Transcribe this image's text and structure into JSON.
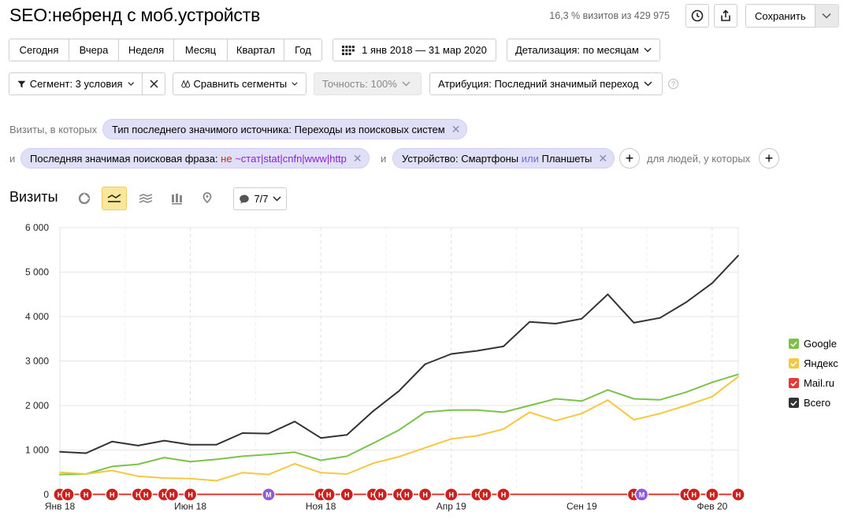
{
  "header": {
    "title": "SEO:небренд с моб.устройств",
    "visits_share": "16,3 % визитов из 429 975",
    "save_label": "Сохранить"
  },
  "toolbar": {
    "periods": [
      "Сегодня",
      "Вчера",
      "Неделя",
      "Месяц",
      "Квартал",
      "Год"
    ],
    "date_range": "1 янв 2018 — 31 мар 2020",
    "detail": "Детализация: по месяцам",
    "segment": "Сегмент: 3 условия",
    "compare": "Сравнить сегменты",
    "accuracy": "Точность: 100%",
    "attribution": "Атрибуция: Последний значимый переход",
    "help": "?"
  },
  "segment_conditions": {
    "prefix": "Визиты, в которых",
    "and1": "и",
    "and2": "и",
    "people_label": "для людей, у которых",
    "chip1": "Тип последнего значимого источника: Переходы из поисковых систем",
    "chip2_label": "Последняя значимая поисковая фраза:",
    "chip2_neg": "не",
    "chip2_value": "~стат|stat|cnfn|www|http",
    "chip3_label": "Устройство: Смартфоны",
    "chip3_or": "или",
    "chip3_value": "Планшеты"
  },
  "report": {
    "title": "Визиты",
    "series_count": "7/7"
  },
  "chart_data": {
    "type": "line",
    "x": [
      "Янв 18",
      "Фев 18",
      "Мар 18",
      "Апр 18",
      "Май 18",
      "Июн 18",
      "Июл 18",
      "Авг 18",
      "Сен 18",
      "Окт 18",
      "Ноя 18",
      "Дек 18",
      "Янв 19",
      "Фев 19",
      "Мар 19",
      "Апр 19",
      "Май 19",
      "Июн 19",
      "Июл 19",
      "Авг 19",
      "Сен 19",
      "Окт 19",
      "Ноя 19",
      "Дек 19",
      "Янв 20",
      "Фев 20",
      "Мар 20"
    ],
    "x_tick_labels": [
      "Янв 18",
      "Июн 18",
      "Ноя 18",
      "Апр 19",
      "Сен 19",
      "Фев 20"
    ],
    "y_ticks": [
      "0",
      "1 000",
      "2 000",
      "3 000",
      "4 000",
      "5 000",
      "6 000"
    ],
    "ylim": [
      0,
      6000
    ],
    "grid": true,
    "legend_position": "right",
    "series": [
      {
        "name": "Google",
        "color": "#7cc24a",
        "values": [
          450,
          460,
          630,
          680,
          830,
          740,
          790,
          860,
          900,
          950,
          770,
          860,
          1150,
          1450,
          1850,
          1900,
          1900,
          1850,
          2000,
          2150,
          2100,
          2350,
          2150,
          2130,
          2300,
          2520,
          2700
        ]
      },
      {
        "name": "Яндекс",
        "color": "#f5c842",
        "values": [
          500,
          460,
          540,
          410,
          370,
          360,
          310,
          490,
          450,
          690,
          490,
          460,
          700,
          850,
          1050,
          1250,
          1320,
          1470,
          1850,
          1660,
          1820,
          2120,
          1680,
          1820,
          2000,
          2200,
          2650
        ]
      },
      {
        "name": "Mail.ru",
        "color": "#e53935",
        "values": [
          5,
          5,
          5,
          5,
          5,
          5,
          5,
          5,
          5,
          5,
          5,
          5,
          5,
          5,
          5,
          5,
          5,
          5,
          5,
          5,
          5,
          5,
          5,
          5,
          5,
          5,
          5
        ]
      },
      {
        "name": "Всего",
        "color": "#333333",
        "values": [
          960,
          930,
          1190,
          1100,
          1210,
          1120,
          1120,
          1380,
          1370,
          1640,
          1270,
          1340,
          1870,
          2330,
          2930,
          3160,
          3230,
          3330,
          3880,
          3840,
          3950,
          4500,
          3860,
          3970,
          4320,
          4750,
          5370
        ]
      }
    ],
    "annotation_markers": {
      "labels": {
        "n": "Н",
        "m": "M"
      },
      "items": [
        {
          "x": 0.0,
          "label": "n"
        },
        {
          "x": 0.3,
          "label": "n"
        },
        {
          "x": 1.0,
          "label": "n"
        },
        {
          "x": 2.0,
          "label": "n"
        },
        {
          "x": 3.0,
          "label": "n"
        },
        {
          "x": 3.3,
          "label": "n"
        },
        {
          "x": 4.0,
          "label": "n"
        },
        {
          "x": 4.3,
          "label": "n"
        },
        {
          "x": 5.0,
          "label": "n"
        },
        {
          "x": 8.0,
          "label": "m"
        },
        {
          "x": 10.0,
          "label": "n"
        },
        {
          "x": 10.3,
          "label": "n"
        },
        {
          "x": 11.0,
          "label": "n"
        },
        {
          "x": 12.0,
          "label": "n"
        },
        {
          "x": 12.3,
          "label": "n"
        },
        {
          "x": 13.0,
          "label": "n"
        },
        {
          "x": 13.3,
          "label": "n"
        },
        {
          "x": 14.0,
          "label": "n"
        },
        {
          "x": 15.0,
          "label": "n"
        },
        {
          "x": 16.0,
          "label": "n"
        },
        {
          "x": 16.3,
          "label": "n"
        },
        {
          "x": 17.0,
          "label": "n"
        },
        {
          "x": 22.0,
          "label": "n"
        },
        {
          "x": 22.3,
          "label": "m"
        },
        {
          "x": 24.0,
          "label": "n"
        },
        {
          "x": 24.3,
          "label": "n"
        },
        {
          "x": 25.0,
          "label": "n"
        },
        {
          "x": 26.0,
          "label": "n"
        }
      ]
    }
  }
}
